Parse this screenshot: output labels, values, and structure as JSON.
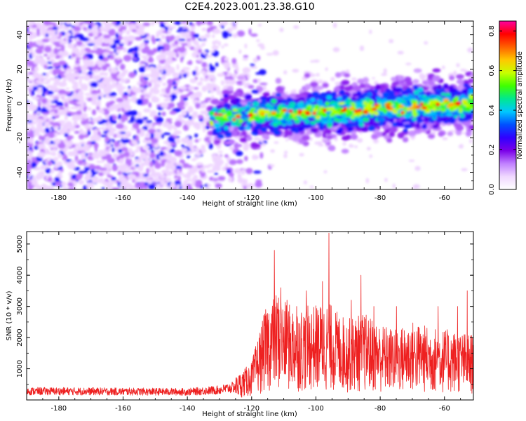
{
  "title": "C2E4.2023.001.23.38.G10",
  "chart_data": [
    {
      "type": "heatmap",
      "xlabel": "Height of straight line (km)",
      "ylabel": "Frequency (Hz)",
      "xlim": [
        -190,
        -51
      ],
      "ylim": [
        -50,
        48
      ],
      "xticks": [
        -180,
        -160,
        -140,
        -120,
        -100,
        -80,
        -60
      ],
      "yticks": [
        -40,
        -20,
        0,
        20,
        40
      ],
      "colorbar": {
        "label": "Normalized spectral amplitude",
        "range": [
          0,
          0.85
        ],
        "ticks": [
          "0.0",
          "0.2",
          "0.4",
          "0.6",
          "0.8"
        ],
        "colors": [
          "#ffffff",
          "#f0d8ff",
          "#c080ff",
          "#7a00e8",
          "#3000ff",
          "#0050ff",
          "#00c8ff",
          "#00e890",
          "#40ff00",
          "#c8ff00",
          "#ffc800",
          "#ff6000",
          "#ff0000",
          "#ff00a0"
        ]
      },
      "features": [
        {
          "x_range": [
            -190,
            -133
          ],
          "freq_range": [
            -50,
            48
          ],
          "amplitude": 0.05,
          "description": "broadband noise"
        },
        {
          "x_range": [
            -133,
            -51
          ],
          "freq_center_start": -8,
          "freq_center_end": 0,
          "freq_halfwidth": 8,
          "peak_amplitude": 0.85
        }
      ]
    },
    {
      "type": "line",
      "xlabel": "Height of straight line (km)",
      "ylabel": "SNR (10 * v/v)",
      "xlim": [
        -190,
        -51
      ],
      "ylim": [
        0,
        5400
      ],
      "xticks": [
        -180,
        -160,
        -140,
        -120,
        -100,
        -80,
        -60
      ],
      "yticks": [
        1000,
        2000,
        3000,
        4000,
        5000
      ],
      "color": "#ee2020",
      "envelope": {
        "x": [
          -190,
          -180,
          -160,
          -140,
          -130,
          -125,
          -120,
          -117,
          -115,
          -112,
          -110,
          -105,
          -100,
          -96,
          -93,
          -90,
          -85,
          -80,
          -75,
          -70,
          -65,
          -60,
          -55,
          -51
        ],
        "y": [
          280,
          280,
          270,
          260,
          320,
          420,
          700,
          1400,
          1800,
          2000,
          1800,
          1700,
          1750,
          1800,
          1600,
          1500,
          1600,
          1400,
          1300,
          1450,
          1350,
          1300,
          1250,
          1200
        ]
      },
      "peaks": [
        {
          "x": -113,
          "y": 4800
        },
        {
          "x": -111,
          "y": 3600
        },
        {
          "x": -109,
          "y": 3200
        },
        {
          "x": -106,
          "y": 3000
        },
        {
          "x": -103,
          "y": 3500
        },
        {
          "x": -98,
          "y": 3800
        },
        {
          "x": -96,
          "y": 5350
        },
        {
          "x": -89,
          "y": 3200
        },
        {
          "x": -86,
          "y": 4000
        },
        {
          "x": -82,
          "y": 3000
        },
        {
          "x": -75,
          "y": 3000
        },
        {
          "x": -62,
          "y": 3000
        },
        {
          "x": -56,
          "y": 3000
        },
        {
          "x": -53,
          "y": 3500
        }
      ]
    }
  ]
}
